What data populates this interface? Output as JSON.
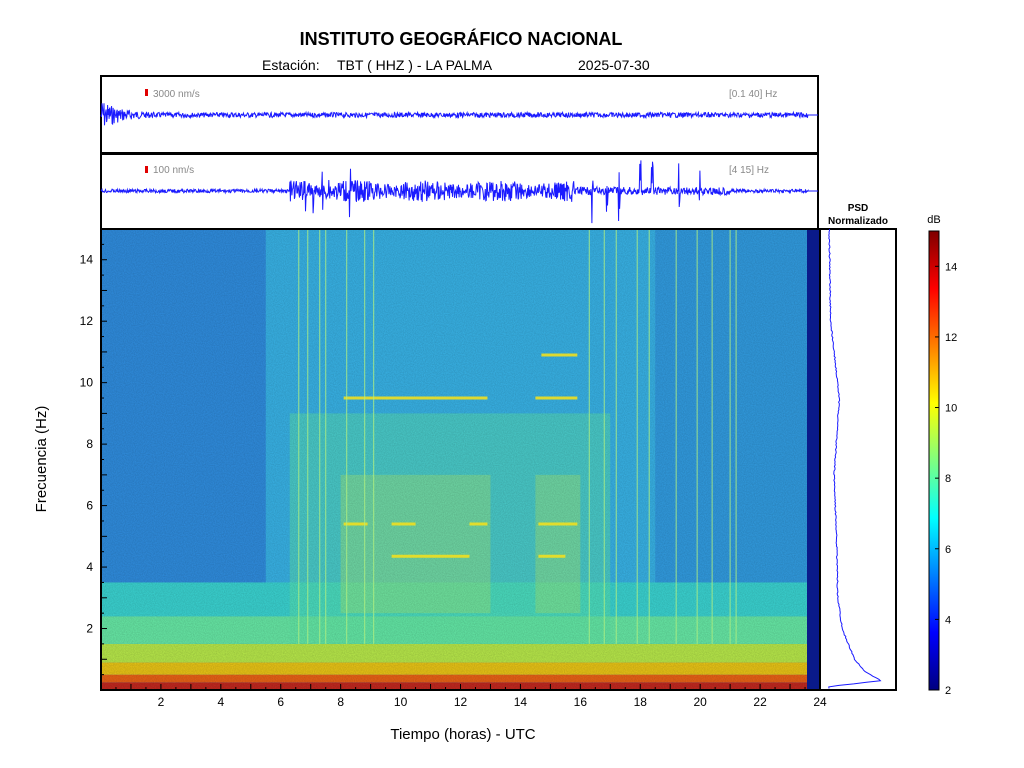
{
  "header": {
    "title": "INSTITUTO GEOGRÁFICO NACIONAL",
    "station_label": "Estación:",
    "station": "TBT ( HHZ ) - LA PALMA",
    "date": "2025-07-30"
  },
  "trace1": {
    "scale_label": "3000 nm/s",
    "band_label": "[0.1 40] Hz"
  },
  "trace2": {
    "scale_label": "100 nm/s",
    "band_label": "[4 15] Hz"
  },
  "psd_title": [
    "PSD",
    "Normalizado"
  ],
  "colorbar": {
    "unit": "dB",
    "ticks": [
      2,
      4,
      6,
      8,
      10,
      12,
      14
    ],
    "range": [
      2,
      15
    ]
  },
  "chart_data": {
    "type": "heatmap",
    "xlabel": "Tiempo (horas) - UTC",
    "ylabel": "Frecuencia  (Hz)",
    "xlim": [
      0,
      24
    ],
    "ylim": [
      0,
      15
    ],
    "xticks": [
      2,
      4,
      6,
      8,
      10,
      12,
      14,
      16,
      18,
      20,
      22,
      24
    ],
    "yticks": [
      2,
      4,
      6,
      8,
      10,
      12,
      14
    ],
    "colorscale": "jet",
    "spectral_lines": [
      {
        "f": 5.4,
        "t": [
          8.1,
          8.9
        ]
      },
      {
        "f": 5.4,
        "t": [
          9.7,
          10.5
        ]
      },
      {
        "f": 5.4,
        "t": [
          12.3,
          12.9
        ]
      },
      {
        "f": 5.4,
        "t": [
          14.6,
          15.9
        ]
      },
      {
        "f": 4.35,
        "t": [
          9.7,
          12.3
        ]
      },
      {
        "f": 4.35,
        "t": [
          14.6,
          15.5
        ]
      },
      {
        "f": 9.5,
        "t": [
          8.1,
          12.9
        ]
      },
      {
        "f": 9.5,
        "t": [
          14.5,
          15.9
        ]
      },
      {
        "f": 10.9,
        "t": [
          14.7,
          15.9
        ]
      }
    ],
    "psd_normalized_profile": [
      {
        "f": 0.1,
        "v": 0.05
      },
      {
        "f": 0.3,
        "v": 0.82
      },
      {
        "f": 0.6,
        "v": 0.6
      },
      {
        "f": 1.0,
        "v": 0.45
      },
      {
        "f": 2.0,
        "v": 0.28
      },
      {
        "f": 3.0,
        "v": 0.22
      },
      {
        "f": 5.0,
        "v": 0.2
      },
      {
        "f": 7.0,
        "v": 0.17
      },
      {
        "f": 9.5,
        "v": 0.24
      },
      {
        "f": 12.0,
        "v": 0.12
      },
      {
        "f": 15.0,
        "v": 0.1
      }
    ]
  }
}
